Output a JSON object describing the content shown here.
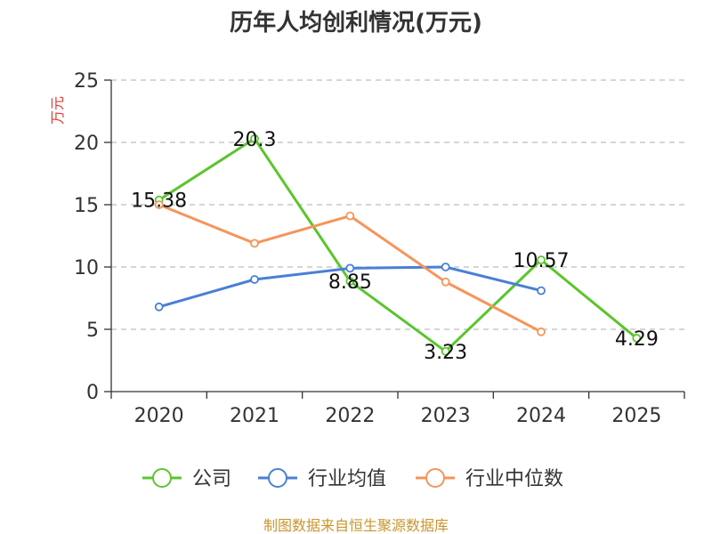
{
  "chart_data": {
    "type": "line",
    "title": "历年人均创利情况(万元)",
    "ylabel": "万元",
    "categories": [
      "2020",
      "2021",
      "2022",
      "2023",
      "2024",
      "2025"
    ],
    "ylim": [
      0,
      25
    ],
    "yticks": [
      0,
      5,
      10,
      15,
      20,
      25
    ],
    "grid": true,
    "legend_position": "bottom",
    "series": [
      {
        "name": "公司",
        "color": "#5bc52e",
        "values": [
          15.38,
          20.3,
          8.85,
          3.23,
          10.57,
          4.29
        ],
        "labels": [
          "15.38",
          "20.3",
          "8.85",
          "3.23",
          "10.57",
          "4.29"
        ]
      },
      {
        "name": "行业均值",
        "color": "#4a7fd6",
        "values": [
          6.8,
          9.0,
          9.9,
          10.0,
          8.1,
          null
        ]
      },
      {
        "name": "行业中位数",
        "color": "#f5955a",
        "values": [
          15.0,
          11.9,
          14.1,
          8.8,
          4.8,
          null
        ]
      }
    ],
    "source": "制图数据来自恒生聚源数据库"
  }
}
